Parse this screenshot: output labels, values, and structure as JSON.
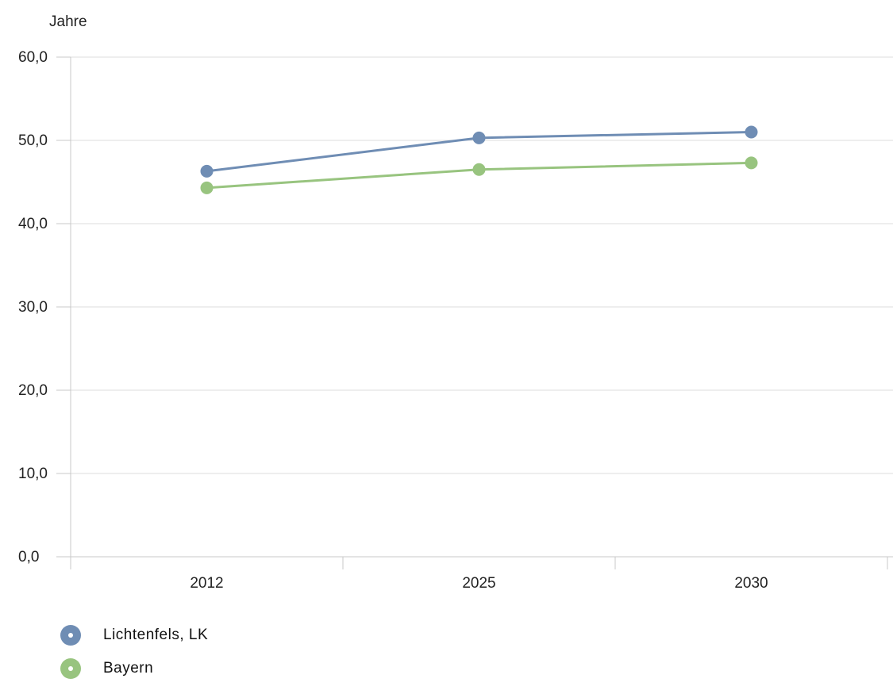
{
  "chart_data": {
    "type": "line",
    "ylabel": "Jahre",
    "categories": [
      "2012",
      "2025",
      "2030"
    ],
    "ylim": [
      0,
      60
    ],
    "yticks": [
      "0,0",
      "10,0",
      "20,0",
      "30,0",
      "40,0",
      "50,0",
      "60,0"
    ],
    "grid": true,
    "legend_position": "bottom-left",
    "series": [
      {
        "name": "Lichtenfels, LK",
        "color": "#6f8db4",
        "values": [
          46.3,
          50.3,
          51.0
        ]
      },
      {
        "name": "Bayern",
        "color": "#98c47f",
        "values": [
          44.3,
          46.5,
          47.3
        ]
      }
    ]
  },
  "colors": {
    "grid": "#dddddd",
    "axis": "#c8c8c8",
    "text": "#222222"
  }
}
